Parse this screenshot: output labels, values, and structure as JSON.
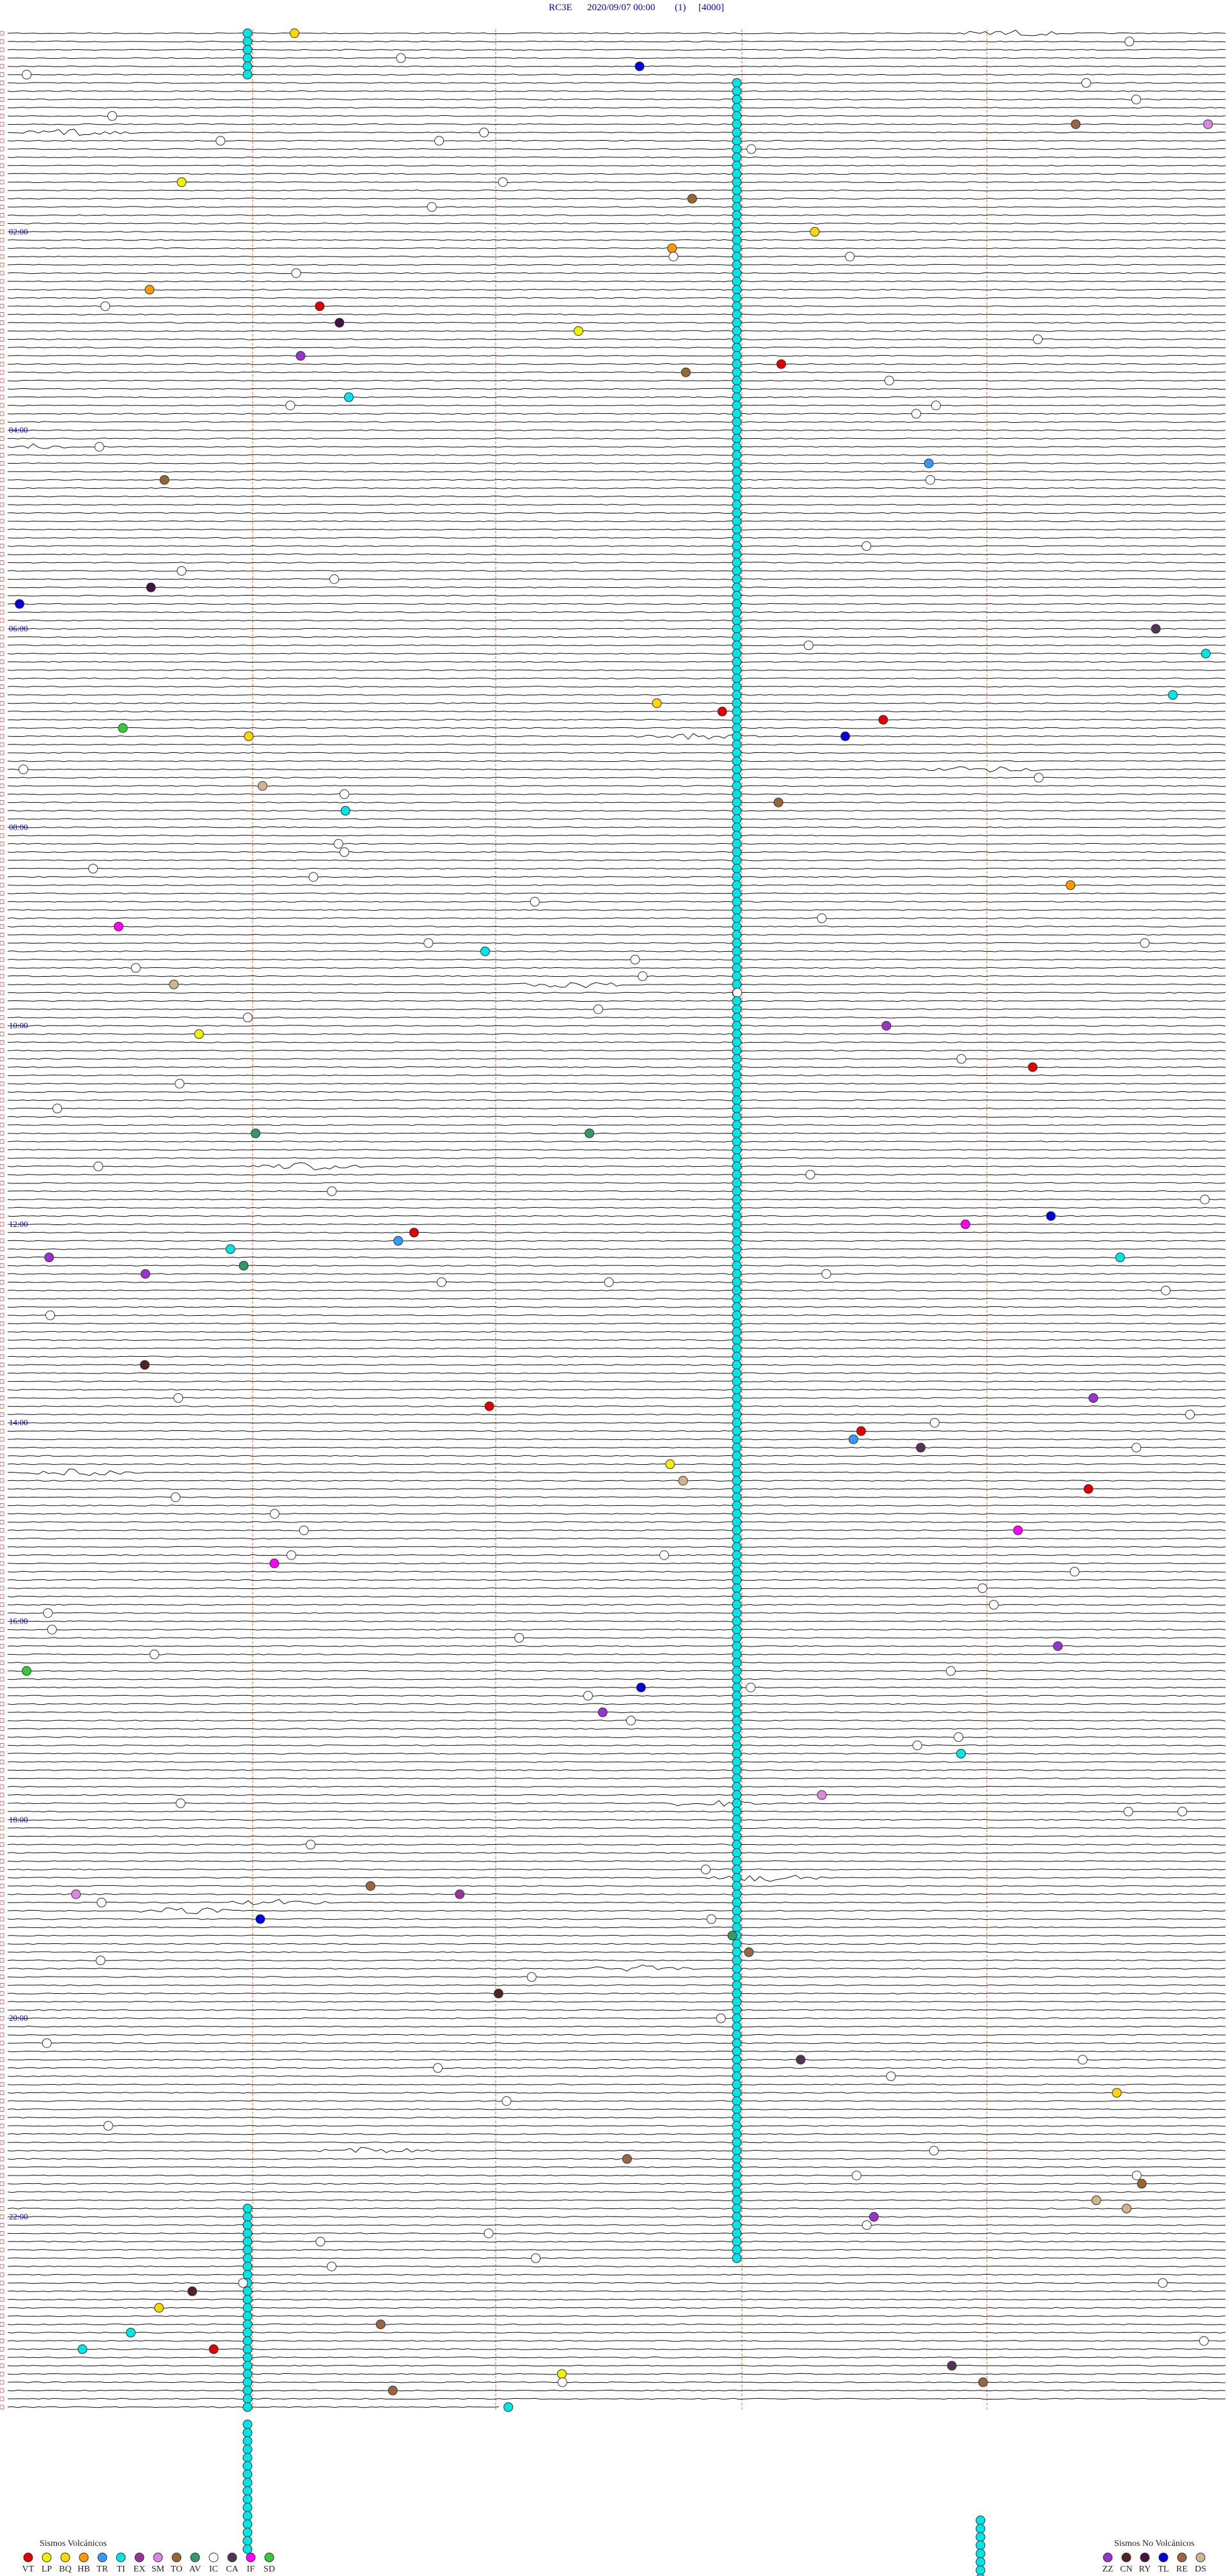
{
  "header": {
    "station": "RC3E",
    "datetime": "2020/09/07 00:00",
    "channel": "(1)",
    "scale": "[4000]"
  },
  "hour_labels": [
    "02:00",
    "04:00",
    "06:00",
    "08:00",
    "10:00",
    "12:00",
    "14:00",
    "16:00",
    "18:00",
    "20:00",
    "22:00"
  ],
  "legend_volcanic": {
    "title": "Sismos Volcánicos",
    "items": [
      {
        "code": "VT",
        "color": "#e00000"
      },
      {
        "code": "LP",
        "color": "#f0f000"
      },
      {
        "code": "BQ",
        "color": "#ffd700"
      },
      {
        "code": "HB",
        "color": "#ff9900"
      },
      {
        "code": "TR",
        "color": "#3399ff"
      },
      {
        "code": "TI",
        "color": "#00e5e5"
      },
      {
        "code": "EX",
        "color": "#993399"
      },
      {
        "code": "SM",
        "color": "#dd88dd"
      },
      {
        "code": "TO",
        "color": "#996633"
      },
      {
        "code": "AV",
        "color": "#339966"
      },
      {
        "code": "IC",
        "color": "#ffffff"
      },
      {
        "code": "CA",
        "color": "#553355"
      },
      {
        "code": "IF",
        "color": "#ff00ff"
      },
      {
        "code": "SD",
        "color": "#33cc33"
      }
    ]
  },
  "legend_non_volcanic": {
    "title": "Sismos No Volcánicos",
    "items": [
      {
        "code": "ZZ",
        "color": "#9933cc"
      },
      {
        "code": "CN",
        "color": "#552222"
      },
      {
        "code": "RY",
        "color": "#441144"
      },
      {
        "code": "TL",
        "color": "#0000dd"
      },
      {
        "code": "RE",
        "color": "#996644"
      },
      {
        "code": "DS",
        "color": "#d2b48c"
      }
    ]
  }
}
